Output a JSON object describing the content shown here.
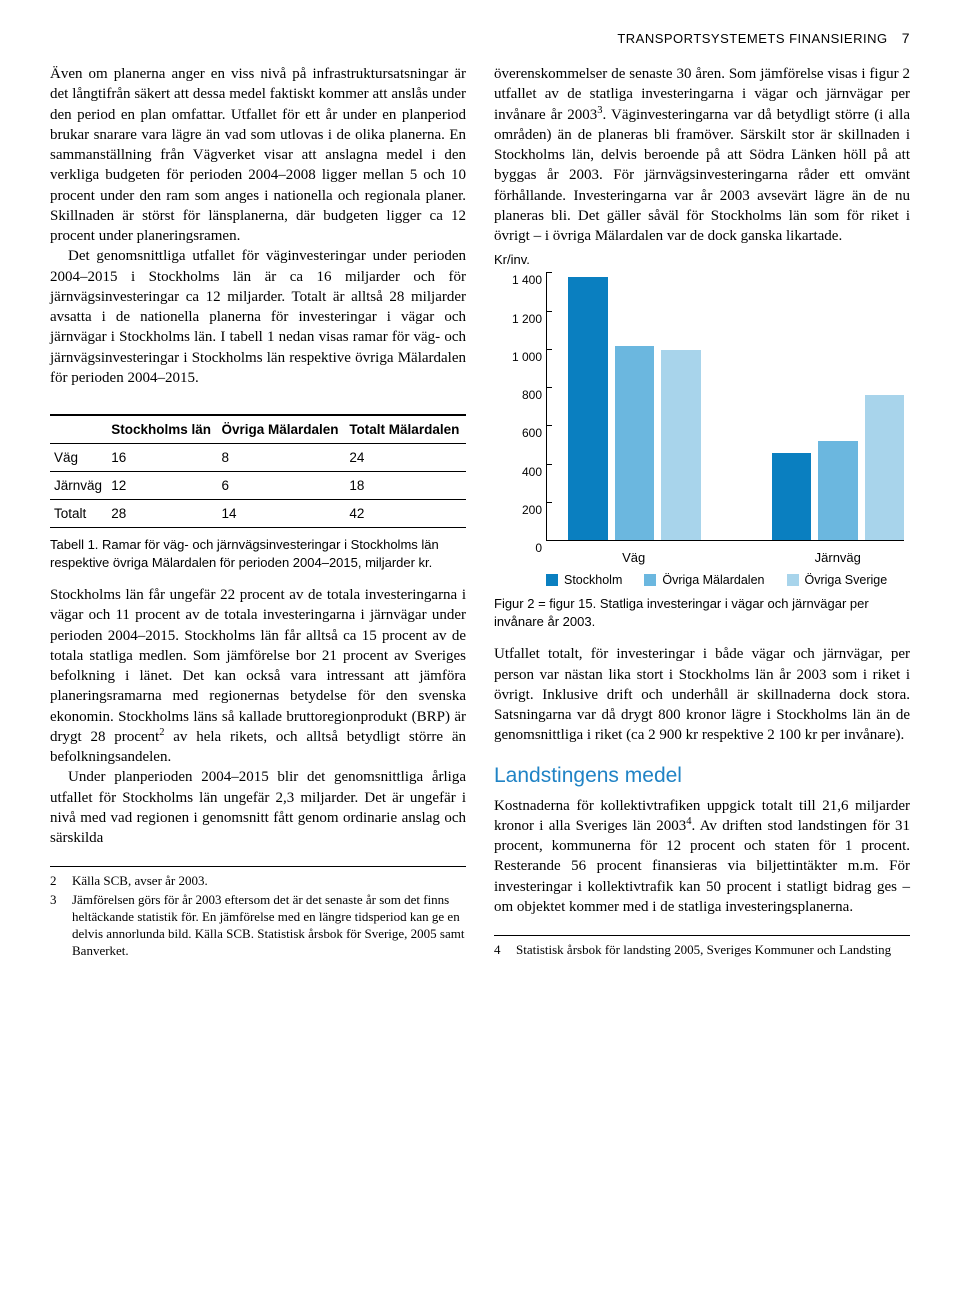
{
  "header": {
    "title": "TRANSPORTSYSTEMETS FINANSIERING",
    "page": "7"
  },
  "left": {
    "p1": "Även om planerna anger en viss nivå på infrastruktursatsningar är det långtifrån säkert att dessa medel faktiskt kommer att anslås under den period en plan omfattar. Utfallet för ett år under en planperiod brukar snarare vara lägre än vad som utlovas i de olika planerna. En sammanställning från Vägverket visar att anslagna medel i den verkliga budgeten för perioden 2004–2008 ligger mellan 5 och 10 procent under den ram som anges i nationella och regionala planer. Skillnaden är störst för länsplanerna, där budgeten ligger ca 12 procent under planeringsramen.",
    "p2": "Det genomsnittliga utfallet för väginvesteringar under perioden 2004–2015 i Stockholms län är ca 16 miljarder och för järnvägsinvesteringar ca 12 miljarder. Totalt är alltså 28 miljarder avsatta i de nationella planerna för investeringar i vägar och järnvägar i Stockholms län. I tabell 1 nedan visas ramar för väg- och järnvägsinvesteringar i Stockholms län respektive övriga Mälardalen för perioden 2004–2015.",
    "tcaption": "Tabell 1. Ramar för väg- och järnvägsinvesteringar i Stockholms län respektive övriga Mälardalen för perioden 2004–2015, miljarder kr.",
    "p3a": "Stockholms län får ungefär 22 procent av de totala investeringarna i vägar och 11 procent av de totala investeringarna i järnvägar under perioden 2004–2015. Stockholms län får alltså ca 15 procent av de totala statliga medlen. Som jämförelse bor 21 procent av Sveriges befolkning i länet. Det kan också vara intressant att jämföra planeringsramarna med regionernas betydelse för den svenska ekonomin. Stockholms läns så kallade bruttoregionprodukt (BRP) är drygt 28 procent",
    "p3b": " av hela rikets, och alltså betydligt större än befolkningsandelen.",
    "p4": "Under planperioden 2004–2015 blir det genomsnittliga årliga utfallet för Stockholms län ungefär 2,3 miljarder. Det är ungefär i nivå med vad regionen i genomsnitt fått genom ordinarie anslag och särskilda",
    "fn2num": "2",
    "fn2": "Källa SCB, avser år 2003.",
    "fn3num": "3",
    "fn3": "Jämförelsen görs för år 2003 eftersom det är det senaste år som det finns heltäckande statistik för. En jämförelse med en längre tidsperiod kan ge en delvis annorlunda bild. Källa SCB. Statistisk årsbok för Sverige, 2005 samt Banverket."
  },
  "right": {
    "p1a": "överenskommelser de senaste 30 åren. Som jämförelse visas i figur 2 utfallet av de statliga investeringarna i vägar och järnvägar per invånare år 2003",
    "p1b": ". Väginvesteringarna var då betydligt större (i alla områden) än de planeras bli framöver. Särskilt stor är skillnaden i Stockholms län, delvis beroende på att Södra Länken höll på att byggas år 2003. För järnvägsinvesteringarna råder ett omvänt förhållande. Investeringarna var år 2003 avsevärt lägre än de nu planeras bli. Det gäller såväl för Stockholms län som för riket i övrigt – i övriga Mälardalen var de dock ganska likartade.",
    "figcaption": "Figur 2 = figur 15. Statliga investeringar i vägar och järnvägar per invånare år 2003.",
    "p2": "Utfallet totalt, för investeringar i både vägar och järnvägar, per person var nästan lika stort i Stockholms län år 2003 som i riket i övrigt. Inklusive drift och underhåll är skillnaderna dock stora. Satsningarna var då drygt 800 kronor lägre i Stockholms län än de genomsnittliga i riket (ca 2 900 kr respektive 2 100 kr per invånare).",
    "h2": "Landstingens medel",
    "p3a": "Kostnaderna för kollektivtrafiken uppgick totalt till 21,6 miljarder kronor i alla Sveriges län 2003",
    "p3b": ". Av driften stod landstingen för 31 procent, kommunerna för 12 procent och staten för 1 procent. Resterande 56 procent finansieras via biljettintäkter m.m. För investeringar i kollektivtrafik kan 50 procent i statligt bidrag ges – om objektet kommer med i de statliga investeringsplanerna.",
    "fn4num": "4",
    "fn4": "Statistisk årsbok för landsting 2005, Sveriges Kommuner och Landsting"
  },
  "table": {
    "cols": [
      "",
      "Stockholms län",
      "Övriga Mälardalen",
      "Totalt Mälardalen"
    ],
    "rows": [
      [
        "Väg",
        "16",
        "8",
        "24"
      ],
      [
        "Järnväg",
        "12",
        "6",
        "18"
      ],
      [
        "Totalt",
        "28",
        "14",
        "42"
      ]
    ]
  },
  "chart": {
    "type": "bar",
    "ylabel": "Kr/inv.",
    "ylim": [
      0,
      1400
    ],
    "ytick_step": 200,
    "yticks": [
      "0",
      "200",
      "400",
      "600",
      "800",
      "1 000",
      "1 200",
      "1 400"
    ],
    "categories": [
      "Väg",
      "Järnväg"
    ],
    "series": [
      {
        "name": "Stockholm",
        "color": "#0a7fc0",
        "values": [
          1380,
          460
        ]
      },
      {
        "name": "Övriga Mälardalen",
        "color": "#6bb7df",
        "values": [
          1020,
          520
        ]
      },
      {
        "name": "Övriga Sverige",
        "color": "#a8d4eb",
        "values": [
          1000,
          760
        ]
      }
    ],
    "bar_width_pct": 11,
    "bar_gap_pct": 2,
    "group_gap_pct": 18,
    "group_left_pct": 6,
    "grid_color": "#000000",
    "background_color": "#ffffff",
    "label_fontsize": 13
  }
}
